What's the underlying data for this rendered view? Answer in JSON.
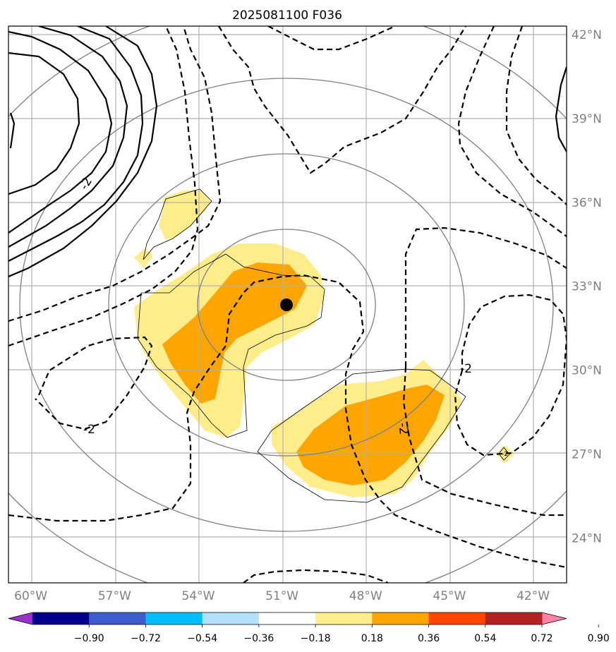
{
  "chart_data": {
    "type": "heatmap",
    "title": "2025081100 F036",
    "x_ticks": [
      "60°W",
      "57°W",
      "54°W",
      "51°W",
      "48°W",
      "45°W",
      "42°W"
    ],
    "x_tick_values": [
      -60,
      -57,
      -54,
      -51,
      -48,
      -45,
      -42
    ],
    "y_ticks": [
      "42°N",
      "39°N",
      "36°N",
      "33°N",
      "30°N",
      "27°N",
      "24°N"
    ],
    "y_tick_values": [
      42,
      39,
      36,
      33,
      30,
      27,
      24
    ],
    "xlim": [
      -60.8,
      -40.8
    ],
    "ylim": [
      22.4,
      42.3
    ],
    "grid": true,
    "center_marker": {
      "lon": -50.9,
      "lat": 32.3
    },
    "contour_labels": [
      "-2",
      "-2",
      "-2",
      "-2",
      "-2"
    ],
    "colorbar": {
      "ticks": [
        "−0.90",
        "−0.72",
        "−0.54",
        "−0.36",
        "−0.18",
        "0.18",
        "0.36",
        "0.54",
        "0.72",
        "0.90"
      ],
      "colors": [
        "#9932cc",
        "#00008b",
        "#3a5fcd",
        "#00bfff",
        "#b0e2ff",
        "#ffffff",
        "#ffec8b",
        "#ffa500",
        "#ff4500",
        "#b22222",
        "#ff82ab"
      ],
      "extend": "both"
    },
    "fill_colors": {
      "low": "#ffec8b",
      "mid": "#ffa500"
    }
  }
}
